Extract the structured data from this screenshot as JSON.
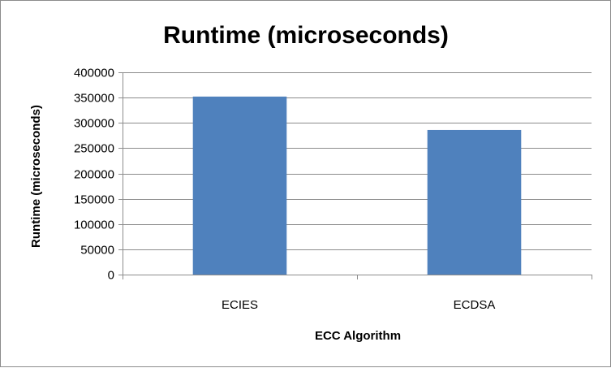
{
  "chart_data": {
    "type": "bar",
    "title": "Runtime (microseconds)",
    "xlabel": "ECC Algorithm",
    "ylabel": "Runtime (microseconds)",
    "categories": [
      "ECIES",
      "ECDSA"
    ],
    "values": [
      352000,
      286000
    ],
    "ylim": [
      0,
      400000
    ],
    "yticks": [
      "0",
      "50000",
      "100000",
      "150000",
      "200000",
      "250000",
      "300000",
      "350000",
      "400000"
    ],
    "grid": true,
    "legend": "none",
    "bar_color": "#4F81BD"
  }
}
